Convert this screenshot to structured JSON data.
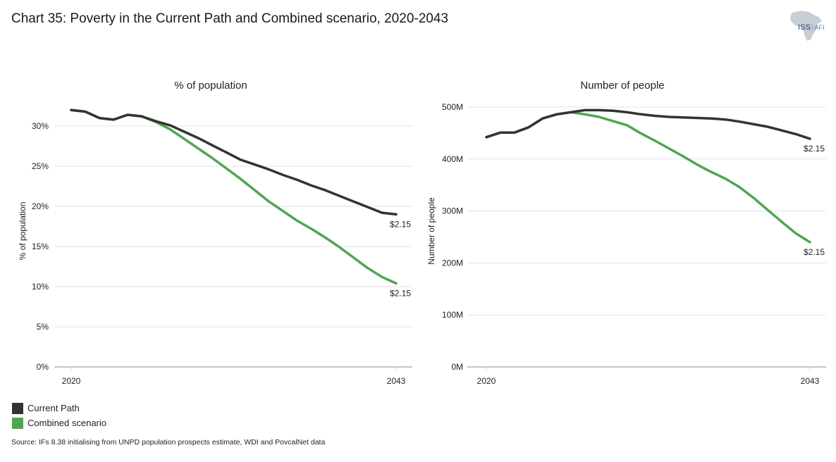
{
  "page": {
    "title": "Chart 35: Poverty in the Current Path and Combined scenario, 2020-2043",
    "logo": {
      "main": "ISS",
      "sub": "AFI"
    },
    "source": "Source: IFs 8.38 initialising from UNPD population prospects estimate, WDI and PovcalNet data"
  },
  "legend": [
    {
      "label": "Current Path",
      "color": "#333333"
    },
    {
      "label": "Combined scenario",
      "color": "#4ea64f"
    }
  ],
  "chart_data": [
    {
      "type": "line",
      "title": "% of population",
      "xlabel": "",
      "ylabel": "% of population",
      "x": [
        2020,
        2021,
        2022,
        2023,
        2024,
        2025,
        2026,
        2027,
        2028,
        2029,
        2030,
        2031,
        2032,
        2033,
        2034,
        2035,
        2036,
        2037,
        2038,
        2039,
        2040,
        2041,
        2042,
        2043
      ],
      "xticks": [
        "2020",
        "2043"
      ],
      "ylim": [
        0,
        30
      ],
      "yticks": [
        0,
        5,
        10,
        15,
        20,
        25,
        30
      ],
      "ytick_labels": [
        "0%",
        "5%",
        "10%",
        "15%",
        "20%",
        "25%",
        "30%"
      ],
      "grid": true,
      "series": [
        {
          "name": "Current Path",
          "color": "#333333",
          "values": [
            32.0,
            31.8,
            31.0,
            30.8,
            31.4,
            31.2,
            30.6,
            30.1,
            29.3,
            28.5,
            27.6,
            26.7,
            25.8,
            25.2,
            24.6,
            23.9,
            23.3,
            22.6,
            22.0,
            21.3,
            20.6,
            19.9,
            19.2,
            19.0
          ],
          "end_label": "$2.15"
        },
        {
          "name": "Combined scenario",
          "color": "#4ea64f",
          "values": [
            32.0,
            31.8,
            31.0,
            30.8,
            31.4,
            31.2,
            30.5,
            29.6,
            28.4,
            27.2,
            26.0,
            24.7,
            23.4,
            22.0,
            20.6,
            19.4,
            18.2,
            17.2,
            16.1,
            14.9,
            13.6,
            12.3,
            11.2,
            10.4
          ],
          "end_label": "$2.15"
        }
      ]
    },
    {
      "type": "line",
      "title": "Number of people",
      "xlabel": "",
      "ylabel": "Number of people",
      "x": [
        2020,
        2021,
        2022,
        2023,
        2024,
        2025,
        2026,
        2027,
        2028,
        2029,
        2030,
        2031,
        2032,
        2033,
        2034,
        2035,
        2036,
        2037,
        2038,
        2039,
        2040,
        2041,
        2042,
        2043
      ],
      "xticks": [
        "2020",
        "2043"
      ],
      "ylim": [
        0,
        500
      ],
      "yticks": [
        0,
        100,
        200,
        300,
        400,
        500
      ],
      "ytick_labels": [
        "0M",
        "100M",
        "200M",
        "300M",
        "400M",
        "500M"
      ],
      "units": "millions",
      "grid": true,
      "series": [
        {
          "name": "Current Path",
          "color": "#333333",
          "values": [
            442,
            451,
            451,
            461,
            478,
            486,
            490,
            494,
            494,
            493,
            490,
            486,
            483,
            481,
            480,
            479,
            478,
            476,
            472,
            467,
            462,
            455,
            448,
            439
          ],
          "end_label": "$2.15"
        },
        {
          "name": "Combined scenario",
          "color": "#4ea64f",
          "values": [
            442,
            451,
            451,
            461,
            478,
            486,
            490,
            486,
            481,
            473,
            465,
            449,
            435,
            420,
            405,
            389,
            375,
            362,
            346,
            325,
            302,
            279,
            257,
            240
          ],
          "end_label": "$2.15"
        }
      ]
    }
  ]
}
